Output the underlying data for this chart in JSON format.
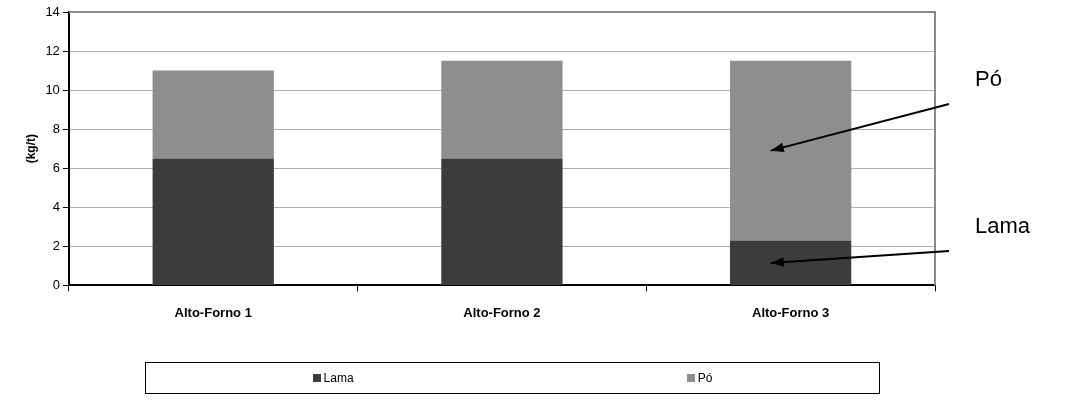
{
  "chart_data": {
    "type": "bar",
    "ylabel": "(kg/t)",
    "stacked": true,
    "categories": [
      "Alto-Forno 1",
      "Alto-Forno 2",
      "Alto-Forno 3"
    ],
    "series": [
      {
        "name": "Lama",
        "color": "#3c3c3c",
        "values": [
          6.5,
          6.5,
          2.3
        ]
      },
      {
        "name": "Pó",
        "color": "#8e8e8e",
        "values": [
          4.5,
          5.0,
          9.2
        ]
      }
    ],
    "ylim": [
      0,
      14
    ],
    "yticks": [
      0,
      2,
      4,
      6,
      8,
      10,
      12,
      14
    ],
    "grid": "y",
    "legend": "bottom",
    "annotations": [
      "Pó",
      "Lama"
    ]
  }
}
